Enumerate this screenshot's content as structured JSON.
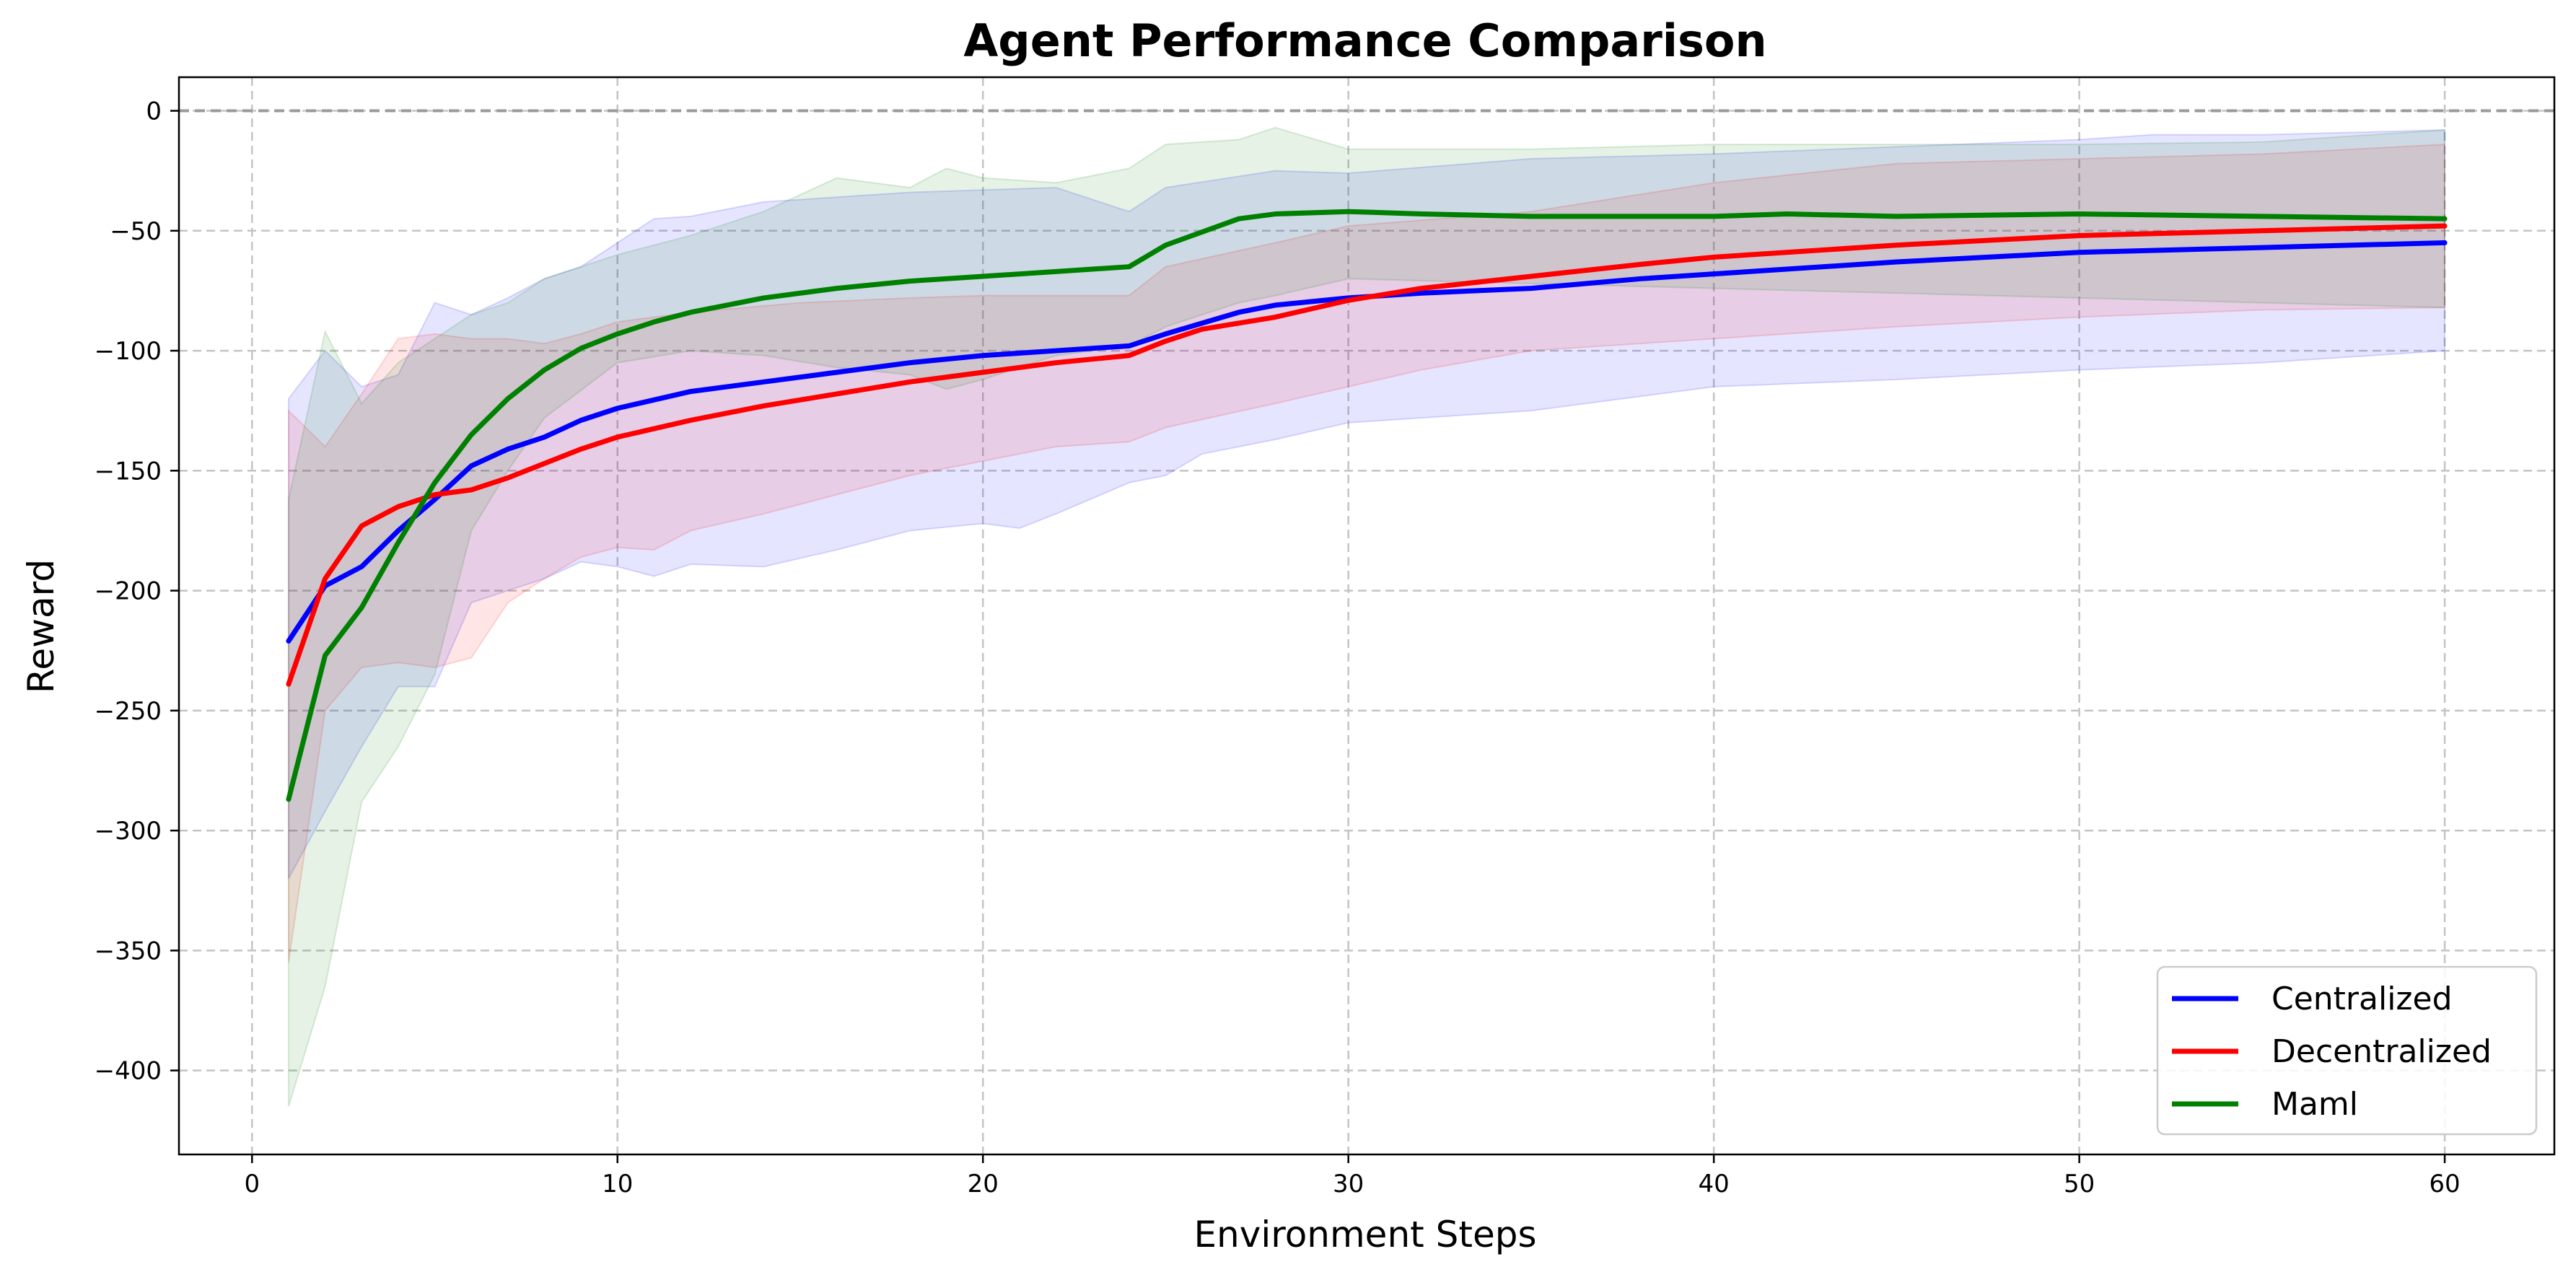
{
  "chart_data": {
    "type": "line",
    "title": "Agent Performance Comparison",
    "xlabel": "Environment Steps",
    "ylabel": "Reward",
    "xlim": [
      -2,
      63
    ],
    "ylim": [
      -435,
      14
    ],
    "xticks": [
      0,
      10,
      20,
      30,
      40,
      50,
      60
    ],
    "yticks": [
      0,
      -50,
      -100,
      -150,
      -200,
      -250,
      -300,
      -350,
      -400
    ],
    "grid": true,
    "reference_line": 0,
    "legend_position": "bottom-right",
    "series": [
      {
        "name": "Centralized",
        "color": "#0000ff",
        "points": [
          [
            1,
            -221
          ],
          [
            2,
            -198
          ],
          [
            3,
            -190
          ],
          [
            4,
            -175
          ],
          [
            5,
            -162
          ],
          [
            6,
            -148
          ],
          [
            7,
            -141
          ],
          [
            8,
            -136
          ],
          [
            9,
            -129
          ],
          [
            10,
            -124
          ],
          [
            12,
            -117
          ],
          [
            14,
            -113
          ],
          [
            16,
            -109
          ],
          [
            18,
            -105
          ],
          [
            20,
            -102
          ],
          [
            22,
            -100
          ],
          [
            24,
            -98
          ],
          [
            25,
            -93
          ],
          [
            27,
            -84
          ],
          [
            28,
            -81
          ],
          [
            30,
            -78
          ],
          [
            32,
            -76
          ],
          [
            35,
            -74
          ],
          [
            38,
            -70
          ],
          [
            40,
            -68
          ],
          [
            45,
            -63
          ],
          [
            50,
            -59
          ],
          [
            55,
            -57
          ],
          [
            60,
            -55
          ]
        ],
        "band_upper": [
          [
            1,
            -120
          ],
          [
            2,
            -100
          ],
          [
            3,
            -115
          ],
          [
            4,
            -110
          ],
          [
            5,
            -80
          ],
          [
            6,
            -85
          ],
          [
            7,
            -78
          ],
          [
            8,
            -70
          ],
          [
            9,
            -65
          ],
          [
            10,
            -55
          ],
          [
            11,
            -45
          ],
          [
            12,
            -44
          ],
          [
            14,
            -38
          ],
          [
            16,
            -36
          ],
          [
            18,
            -34
          ],
          [
            20,
            -33
          ],
          [
            22,
            -32
          ],
          [
            24,
            -42
          ],
          [
            25,
            -32
          ],
          [
            28,
            -25
          ],
          [
            30,
            -26
          ],
          [
            35,
            -20
          ],
          [
            40,
            -18
          ],
          [
            45,
            -15
          ],
          [
            50,
            -12
          ],
          [
            52,
            -10
          ],
          [
            55,
            -10
          ],
          [
            60,
            -8
          ]
        ],
        "band_lower": [
          [
            1,
            -320
          ],
          [
            2,
            -292
          ],
          [
            3,
            -265
          ],
          [
            4,
            -240
          ],
          [
            5,
            -240
          ],
          [
            6,
            -205
          ],
          [
            7,
            -200
          ],
          [
            8,
            -195
          ],
          [
            9,
            -188
          ],
          [
            10,
            -190
          ],
          [
            11,
            -194
          ],
          [
            12,
            -189
          ],
          [
            14,
            -190
          ],
          [
            16,
            -183
          ],
          [
            18,
            -175
          ],
          [
            20,
            -172
          ],
          [
            21,
            -174
          ],
          [
            22,
            -168
          ],
          [
            24,
            -155
          ],
          [
            25,
            -152
          ],
          [
            26,
            -143
          ],
          [
            28,
            -137
          ],
          [
            30,
            -130
          ],
          [
            35,
            -125
          ],
          [
            40,
            -115
          ],
          [
            45,
            -112
          ],
          [
            50,
            -108
          ],
          [
            55,
            -105
          ],
          [
            60,
            -100
          ]
        ]
      },
      {
        "name": "Decentralized",
        "color": "#ff0000",
        "points": [
          [
            1,
            -239
          ],
          [
            2,
            -195
          ],
          [
            3,
            -173
          ],
          [
            4,
            -165
          ],
          [
            5,
            -160
          ],
          [
            6,
            -158
          ],
          [
            7,
            -153
          ],
          [
            8,
            -147
          ],
          [
            9,
            -141
          ],
          [
            10,
            -136
          ],
          [
            12,
            -129
          ],
          [
            14,
            -123
          ],
          [
            16,
            -118
          ],
          [
            18,
            -113
          ],
          [
            20,
            -109
          ],
          [
            22,
            -105
          ],
          [
            24,
            -102
          ],
          [
            25,
            -96
          ],
          [
            26,
            -91
          ],
          [
            28,
            -86
          ],
          [
            30,
            -79
          ],
          [
            32,
            -74
          ],
          [
            35,
            -69
          ],
          [
            38,
            -64
          ],
          [
            40,
            -61
          ],
          [
            45,
            -56
          ],
          [
            50,
            -52
          ],
          [
            55,
            -50
          ],
          [
            60,
            -48
          ]
        ],
        "band_upper": [
          [
            1,
            -125
          ],
          [
            2,
            -140
          ],
          [
            3,
            -118
          ],
          [
            4,
            -95
          ],
          [
            5,
            -93
          ],
          [
            6,
            -95
          ],
          [
            7,
            -95
          ],
          [
            8,
            -97
          ],
          [
            9,
            -93
          ],
          [
            10,
            -88
          ],
          [
            12,
            -84
          ],
          [
            15,
            -80
          ],
          [
            18,
            -78
          ],
          [
            20,
            -77
          ],
          [
            22,
            -77
          ],
          [
            24,
            -77
          ],
          [
            25,
            -65
          ],
          [
            28,
            -55
          ],
          [
            30,
            -48
          ],
          [
            35,
            -42
          ],
          [
            40,
            -30
          ],
          [
            45,
            -22
          ],
          [
            50,
            -20
          ],
          [
            55,
            -18
          ],
          [
            60,
            -14
          ]
        ],
        "band_lower": [
          [
            1,
            -355
          ],
          [
            2,
            -250
          ],
          [
            3,
            -232
          ],
          [
            4,
            -230
          ],
          [
            5,
            -232
          ],
          [
            6,
            -228
          ],
          [
            7,
            -205
          ],
          [
            8,
            -195
          ],
          [
            9,
            -186
          ],
          [
            10,
            -182
          ],
          [
            11,
            -183
          ],
          [
            12,
            -175
          ],
          [
            14,
            -168
          ],
          [
            16,
            -160
          ],
          [
            18,
            -152
          ],
          [
            20,
            -146
          ],
          [
            22,
            -140
          ],
          [
            24,
            -138
          ],
          [
            25,
            -132
          ],
          [
            28,
            -122
          ],
          [
            30,
            -115
          ],
          [
            32,
            -108
          ],
          [
            35,
            -100
          ],
          [
            40,
            -95
          ],
          [
            45,
            -90
          ],
          [
            50,
            -86
          ],
          [
            55,
            -83
          ],
          [
            60,
            -82
          ]
        ]
      },
      {
        "name": "Maml",
        "color": "#008000",
        "points": [
          [
            1,
            -287
          ],
          [
            2,
            -227
          ],
          [
            3,
            -207
          ],
          [
            4,
            -180
          ],
          [
            5,
            -155
          ],
          [
            6,
            -135
          ],
          [
            7,
            -120
          ],
          [
            8,
            -108
          ],
          [
            9,
            -99
          ],
          [
            10,
            -93
          ],
          [
            11,
            -88
          ],
          [
            12,
            -84
          ],
          [
            14,
            -78
          ],
          [
            16,
            -74
          ],
          [
            18,
            -71
          ],
          [
            20,
            -69
          ],
          [
            22,
            -67
          ],
          [
            24,
            -65
          ],
          [
            25,
            -56
          ],
          [
            27,
            -45
          ],
          [
            28,
            -43
          ],
          [
            30,
            -42
          ],
          [
            32,
            -43
          ],
          [
            35,
            -44
          ],
          [
            38,
            -44
          ],
          [
            40,
            -44
          ],
          [
            42,
            -43
          ],
          [
            45,
            -44
          ],
          [
            50,
            -43
          ],
          [
            55,
            -44
          ],
          [
            60,
            -45
          ]
        ],
        "band_upper": [
          [
            1,
            -162
          ],
          [
            2,
            -92
          ],
          [
            3,
            -122
          ],
          [
            4,
            -105
          ],
          [
            5,
            -95
          ],
          [
            6,
            -85
          ],
          [
            7,
            -80
          ],
          [
            8,
            -70
          ],
          [
            10,
            -60
          ],
          [
            12,
            -52
          ],
          [
            14,
            -42
          ],
          [
            16,
            -28
          ],
          [
            18,
            -32
          ],
          [
            19,
            -24
          ],
          [
            20,
            -28
          ],
          [
            22,
            -30
          ],
          [
            24,
            -24
          ],
          [
            25,
            -14
          ],
          [
            27,
            -12
          ],
          [
            28,
            -7
          ],
          [
            30,
            -16
          ],
          [
            35,
            -16
          ],
          [
            40,
            -14
          ],
          [
            45,
            -14
          ],
          [
            50,
            -14
          ],
          [
            55,
            -13
          ],
          [
            60,
            -8
          ]
        ],
        "band_lower": [
          [
            1,
            -415
          ],
          [
            2,
            -365
          ],
          [
            3,
            -288
          ],
          [
            4,
            -265
          ],
          [
            5,
            -235
          ],
          [
            6,
            -175
          ],
          [
            7,
            -150
          ],
          [
            8,
            -128
          ],
          [
            10,
            -105
          ],
          [
            12,
            -100
          ],
          [
            14,
            -102
          ],
          [
            16,
            -107
          ],
          [
            18,
            -110
          ],
          [
            19,
            -116
          ],
          [
            20,
            -112
          ],
          [
            22,
            -102
          ],
          [
            24,
            -98
          ],
          [
            25,
            -90
          ],
          [
            27,
            -80
          ],
          [
            28,
            -77
          ],
          [
            30,
            -70
          ],
          [
            35,
            -72
          ],
          [
            40,
            -74
          ],
          [
            45,
            -76
          ],
          [
            50,
            -78
          ],
          [
            55,
            -80
          ],
          [
            60,
            -82
          ]
        ]
      }
    ]
  }
}
